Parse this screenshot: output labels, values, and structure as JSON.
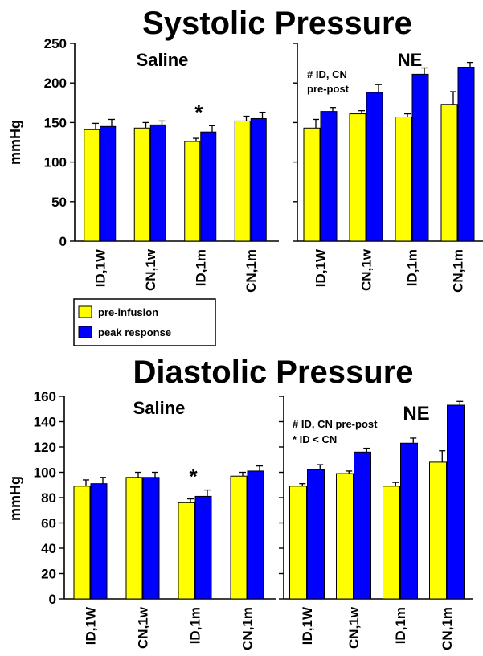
{
  "titles": {
    "top": "Systolic Pressure",
    "bottom": "Diastolic Pressure"
  },
  "legend": {
    "items": [
      {
        "label": "pre-infusion",
        "color": "#FFFF00"
      },
      {
        "label": "peak response",
        "color": "#0000FF"
      }
    ]
  },
  "colors": {
    "pre": "#FFFF00",
    "peak": "#0000FF",
    "axis": "#000000"
  },
  "chart_data": [
    {
      "type": "bar",
      "title": "Saline",
      "ylabel": "mmHg",
      "ylim": [
        0,
        250
      ],
      "yticks": [
        0,
        50,
        100,
        150,
        200,
        250
      ],
      "categories": [
        "ID,1W",
        "CN,1w",
        "ID,1m",
        "CN,1m"
      ],
      "series": [
        {
          "name": "pre-infusion",
          "values": [
            141,
            143,
            126,
            152
          ],
          "errors": [
            8,
            7,
            4,
            6
          ]
        },
        {
          "name": "peak response",
          "values": [
            145,
            147,
            138,
            155
          ],
          "errors": [
            9,
            5,
            8,
            8
          ]
        }
      ],
      "annotations": [
        {
          "text": "*",
          "category": "ID,1m"
        }
      ],
      "note": ""
    },
    {
      "type": "bar",
      "title": "NE",
      "ylabel": "",
      "ylim": [
        0,
        250
      ],
      "yticks": [
        0,
        50,
        100,
        150,
        200,
        250
      ],
      "categories": [
        "ID,1W",
        "CN,1w",
        "ID,1m",
        "CN,1m"
      ],
      "series": [
        {
          "name": "pre-infusion",
          "values": [
            143,
            161,
            157,
            173
          ],
          "errors": [
            11,
            4,
            4,
            16
          ]
        },
        {
          "name": "peak response",
          "values": [
            164,
            188,
            211,
            220
          ],
          "errors": [
            5,
            10,
            8,
            6
          ]
        }
      ],
      "annotations": [],
      "note": [
        "# ID, CN",
        "pre-post"
      ]
    },
    {
      "type": "bar",
      "title": "Saline",
      "ylabel": "mmHg",
      "ylim": [
        0,
        160
      ],
      "yticks": [
        0,
        20,
        40,
        60,
        80,
        100,
        120,
        140,
        160
      ],
      "categories": [
        "ID,1W",
        "CN,1w",
        "ID,1m",
        "CN,1m"
      ],
      "series": [
        {
          "name": "pre-infusion",
          "values": [
            89,
            96,
            76,
            97
          ],
          "errors": [
            5,
            4,
            3,
            3
          ]
        },
        {
          "name": "peak response",
          "values": [
            91,
            96,
            81,
            101
          ],
          "errors": [
            5,
            4,
            5,
            4
          ]
        }
      ],
      "annotations": [
        {
          "text": "*",
          "category": "ID,1m"
        }
      ],
      "note": ""
    },
    {
      "type": "bar",
      "title": "NE",
      "ylabel": "",
      "ylim": [
        0,
        160
      ],
      "yticks": [
        0,
        20,
        40,
        60,
        80,
        100,
        120,
        140,
        160
      ],
      "categories": [
        "ID,1W",
        "CN,1w",
        "ID,1m",
        "CN,1m"
      ],
      "series": [
        {
          "name": "pre-infusion",
          "values": [
            89,
            99,
            89,
            108
          ],
          "errors": [
            2,
            2,
            3,
            9
          ]
        },
        {
          "name": "peak response",
          "values": [
            102,
            116,
            123,
            153
          ],
          "errors": [
            4,
            3,
            4,
            3
          ]
        }
      ],
      "annotations": [],
      "note": [
        "# ID, CN pre-post",
        "* ID < CN"
      ]
    }
  ]
}
